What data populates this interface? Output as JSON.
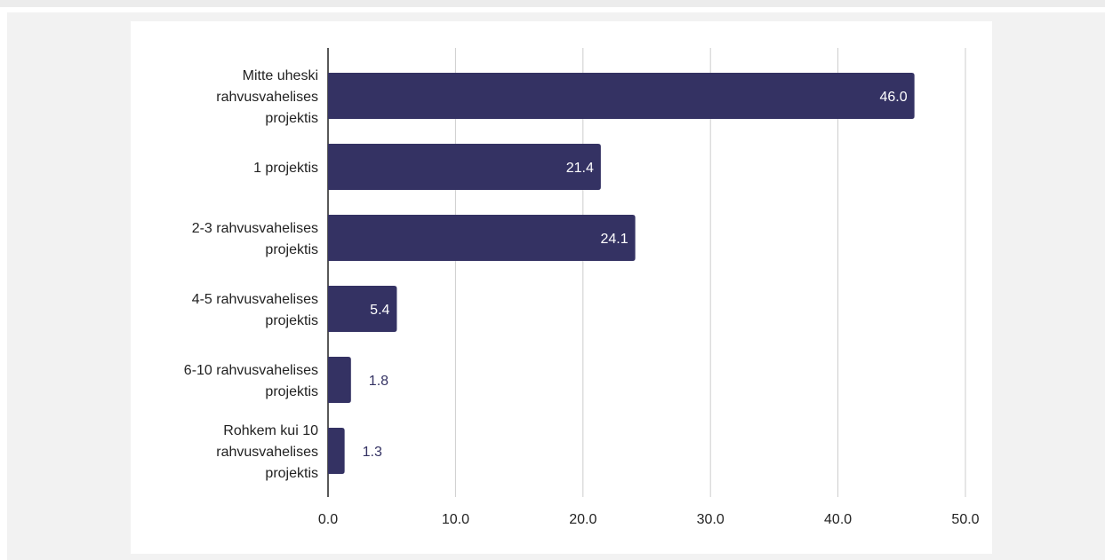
{
  "chart_data": {
    "type": "bar",
    "orientation": "horizontal",
    "categories": [
      [
        "Mitte uheski",
        "rahvusvahelises",
        "projektis"
      ],
      [
        "1 projektis"
      ],
      [
        "2-3 rahvusvahelises",
        "projektis"
      ],
      [
        "4-5 rahvusvahelises",
        "projektis"
      ],
      [
        "6-10 rahvusvahelises",
        "projektis"
      ],
      [
        "Rohkem kui 10",
        "rahvusvahelises",
        "projektis"
      ]
    ],
    "values": [
      46.0,
      21.4,
      24.1,
      5.4,
      1.8,
      1.3
    ],
    "value_labels": [
      "46.0",
      "21.4",
      "24.1",
      "5.4",
      "1.8",
      "1.3"
    ],
    "x_ticks": [
      "0.0",
      "10.0",
      "20.0",
      "30.0",
      "40.0",
      "50.0"
    ],
    "xlim": [
      0,
      50
    ],
    "grid": true,
    "legend": "none",
    "colors": {
      "bar": "#343263",
      "label_inside": "#ffffff",
      "label_outside": "#343263",
      "grid": "#cccccc",
      "axis": "#222222"
    }
  }
}
